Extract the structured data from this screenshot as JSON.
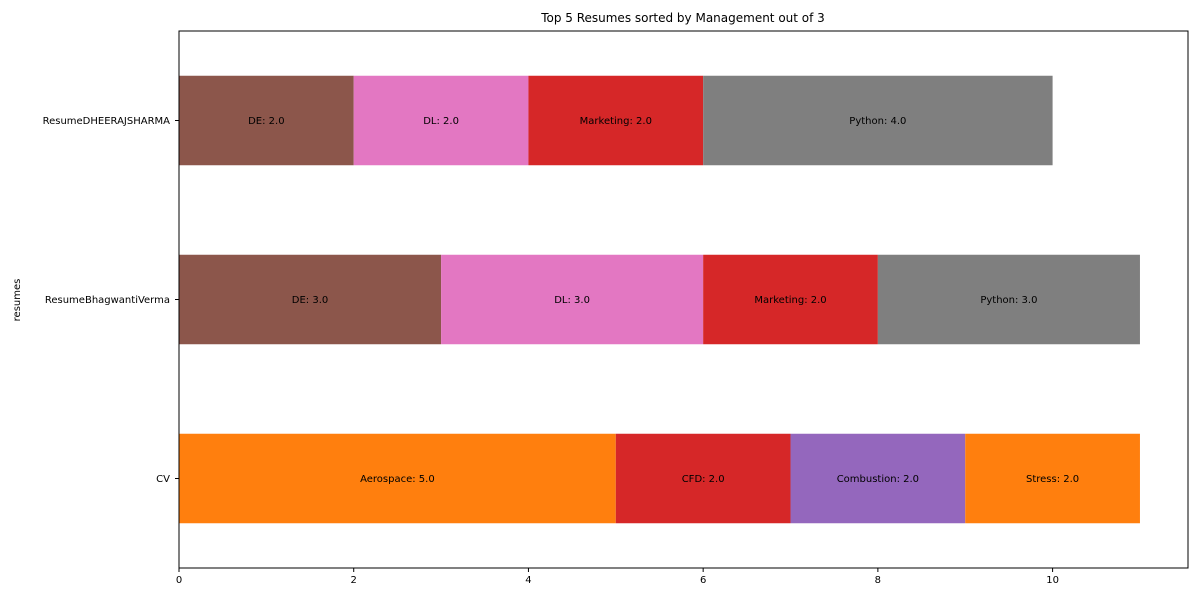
{
  "chart_data": {
    "type": "bar",
    "orientation": "horizontal",
    "stacked": true,
    "title": "Top 5 Resumes sorted by Management out of 3",
    "xlabel": "",
    "ylabel": "resumes",
    "xlim": [
      0,
      11.55
    ],
    "xticks": [
      0,
      2,
      4,
      6,
      8,
      10
    ],
    "grid": false,
    "legend": "none",
    "categories": [
      "CV",
      "ResumeBhagwantiVerma",
      "ResumeDHEERAJSHARMA"
    ],
    "bars": [
      {
        "category": "CV",
        "segments": [
          {
            "label": "Aerospace: 5.0",
            "value": 5.0,
            "color": "#ff7f0e"
          },
          {
            "label": "CFD: 2.0",
            "value": 2.0,
            "color": "#d62728"
          },
          {
            "label": "Combustion: 2.0",
            "value": 2.0,
            "color": "#9467bd"
          },
          {
            "label": "Stress: 2.0",
            "value": 2.0,
            "color": "#ff7f0e"
          }
        ]
      },
      {
        "category": "ResumeBhagwantiVerma",
        "segments": [
          {
            "label": "DE: 3.0",
            "value": 3.0,
            "color": "#8c564b"
          },
          {
            "label": "DL: 3.0",
            "value": 3.0,
            "color": "#e377c2"
          },
          {
            "label": "Marketing: 2.0",
            "value": 2.0,
            "color": "#d62728"
          },
          {
            "label": "Python: 3.0",
            "value": 3.0,
            "color": "#7f7f7f"
          }
        ]
      },
      {
        "category": "ResumeDHEERAJSHARMA",
        "segments": [
          {
            "label": "DE: 2.0",
            "value": 2.0,
            "color": "#8c564b"
          },
          {
            "label": "DL: 2.0",
            "value": 2.0,
            "color": "#e377c2"
          },
          {
            "label": "Marketing: 2.0",
            "value": 2.0,
            "color": "#d62728"
          },
          {
            "label": "Python: 4.0",
            "value": 4.0,
            "color": "#7f7f7f"
          }
        ]
      }
    ]
  }
}
